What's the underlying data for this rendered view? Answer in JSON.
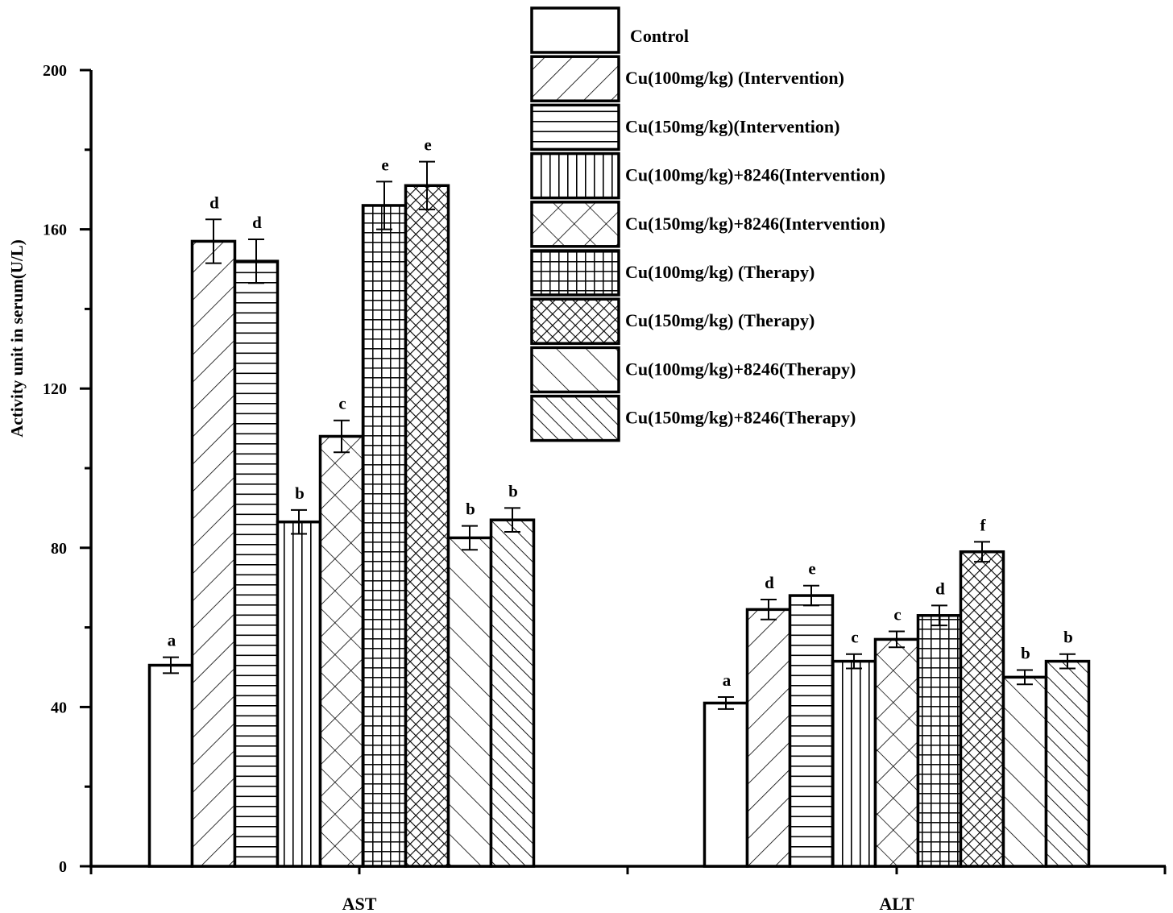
{
  "chart_data": {
    "type": "bar",
    "title": "",
    "xlabel": "",
    "ylabel": "Activity unit in serum(U/L)",
    "ylim": [
      0,
      200
    ],
    "yticks": [
      0,
      40,
      80,
      120,
      160,
      200
    ],
    "categories": [
      "AST",
      "ALT"
    ],
    "legend_position": "top-right",
    "grid": false,
    "series": [
      {
        "name": "Control",
        "pattern": "none",
        "values": [
          50.5,
          41
        ],
        "errors": [
          2,
          1.5
        ],
        "sig": [
          "a",
          "a"
        ]
      },
      {
        "name": "Cu(100mg/kg) (Intervention)",
        "pattern": "diag-forward",
        "values": [
          157,
          64.5
        ],
        "errors": [
          5.5,
          2.5
        ],
        "sig": [
          "d",
          "d"
        ]
      },
      {
        "name": "Cu(150mg/kg)(Intervention)",
        "pattern": "horizontal",
        "values": [
          152,
          68
        ],
        "errors": [
          5.5,
          2.5
        ],
        "sig": [
          "d",
          "e"
        ]
      },
      {
        "name": "Cu(100mg/kg)+8246(Intervention)",
        "pattern": "vertical",
        "values": [
          86.5,
          51.5
        ],
        "errors": [
          3,
          1.8
        ],
        "sig": [
          "b",
          "c"
        ]
      },
      {
        "name": "Cu(150mg/kg)+8246(Intervention)",
        "pattern": "crosshatch-wide",
        "values": [
          108,
          57
        ],
        "errors": [
          4,
          2
        ],
        "sig": [
          "c",
          "c"
        ]
      },
      {
        "name": "Cu(100mg/kg) (Therapy)",
        "pattern": "grid",
        "values": [
          166,
          63
        ],
        "errors": [
          6,
          2.5
        ],
        "sig": [
          "e",
          "d"
        ]
      },
      {
        "name": "Cu(150mg/kg) (Therapy)",
        "pattern": "crosshatch-dense",
        "values": [
          171,
          79
        ],
        "errors": [
          6,
          2.5
        ],
        "sig": [
          "e",
          "f"
        ]
      },
      {
        "name": "Cu(100mg/kg)+8246(Therapy)",
        "pattern": "diag-back",
        "values": [
          82.5,
          47.5
        ],
        "errors": [
          3,
          1.8
        ],
        "sig": [
          "b",
          "b"
        ]
      },
      {
        "name": "Cu(150mg/kg)+8246(Therapy)",
        "pattern": "diag-back-dense",
        "values": [
          87,
          51.5
        ],
        "errors": [
          3,
          1.8
        ],
        "sig": [
          "b",
          "b"
        ]
      }
    ]
  }
}
